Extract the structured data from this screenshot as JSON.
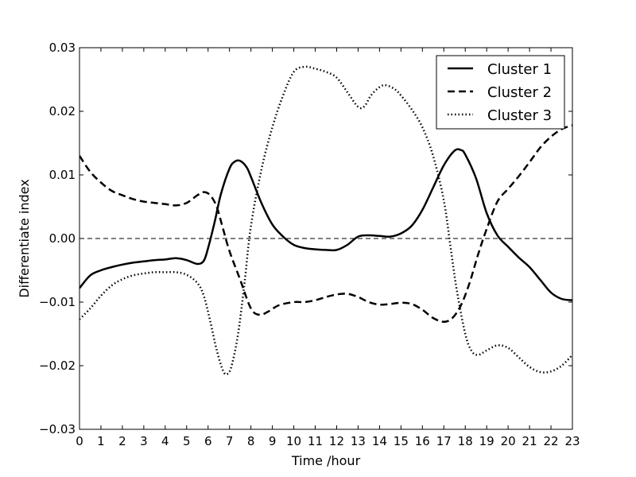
{
  "chart_data": {
    "type": "line",
    "title": "",
    "xlabel": "Time /hour",
    "ylabel": "Differentiate index",
    "xlim": [
      0,
      23
    ],
    "ylim": [
      -0.03,
      0.03
    ],
    "x_ticks": [
      0,
      1,
      2,
      3,
      4,
      5,
      6,
      7,
      8,
      9,
      10,
      11,
      12,
      13,
      14,
      15,
      16,
      17,
      18,
      19,
      20,
      21,
      22,
      23
    ],
    "x_tick_labels": [
      "0",
      "1",
      "2",
      "3",
      "4",
      "5",
      "6",
      "7",
      "8",
      "9",
      "10",
      "11",
      "12",
      "13",
      "14",
      "15",
      "16",
      "17",
      "18",
      "19",
      "20",
      "21",
      "22",
      "23"
    ],
    "y_ticks": [
      -0.03,
      -0.02,
      -0.01,
      0.0,
      0.01,
      0.02,
      0.03
    ],
    "y_tick_labels": [
      "−0.03",
      "−0.02",
      "−0.01",
      "0.00",
      "0.01",
      "0.02",
      "0.03"
    ],
    "grid": false,
    "legend_position": "top-right",
    "reference_line": {
      "y": 0.0,
      "style": "dashed"
    },
    "series": [
      {
        "name": "Cluster 1",
        "style": "solid",
        "color": "#000000",
        "points": [
          [
            0,
            -0.0078
          ],
          [
            0.5,
            -0.0058
          ],
          [
            1,
            -0.005
          ],
          [
            1.5,
            -0.0045
          ],
          [
            2,
            -0.0041
          ],
          [
            2.5,
            -0.0038
          ],
          [
            3,
            -0.0036
          ],
          [
            3.5,
            -0.0034
          ],
          [
            4,
            -0.0033
          ],
          [
            4.5,
            -0.0031
          ],
          [
            5,
            -0.0034
          ],
          [
            5.5,
            -0.004
          ],
          [
            5.8,
            -0.0035
          ],
          [
            6,
            -0.0015
          ],
          [
            6.3,
            0.0025
          ],
          [
            6.6,
            0.007
          ],
          [
            7,
            0.011
          ],
          [
            7.25,
            0.0121
          ],
          [
            7.5,
            0.0122
          ],
          [
            7.8,
            0.0112
          ],
          [
            8,
            0.0097
          ],
          [
            8.5,
            0.0055
          ],
          [
            9,
            0.0022
          ],
          [
            9.5,
            0.0003
          ],
          [
            10,
            -0.001
          ],
          [
            10.5,
            -0.0015
          ],
          [
            11,
            -0.0017
          ],
          [
            11.5,
            -0.0018
          ],
          [
            12,
            -0.0018
          ],
          [
            12.5,
            -0.001
          ],
          [
            13,
            0.0003
          ],
          [
            13.5,
            0.0005
          ],
          [
            14,
            0.0004
          ],
          [
            14.5,
            0.0003
          ],
          [
            15,
            0.0008
          ],
          [
            15.5,
            0.002
          ],
          [
            16,
            0.0045
          ],
          [
            16.5,
            0.008
          ],
          [
            17,
            0.0115
          ],
          [
            17.5,
            0.0138
          ],
          [
            17.8,
            0.0139
          ],
          [
            18,
            0.0132
          ],
          [
            18.5,
            0.0095
          ],
          [
            19,
            0.004
          ],
          [
            19.5,
            0.0005
          ],
          [
            20,
            -0.0013
          ],
          [
            20.5,
            -0.003
          ],
          [
            21,
            -0.0045
          ],
          [
            21.5,
            -0.0065
          ],
          [
            22,
            -0.0085
          ],
          [
            22.5,
            -0.0095
          ],
          [
            23,
            -0.0097
          ]
        ]
      },
      {
        "name": "Cluster 2",
        "style": "dashed",
        "color": "#000000",
        "points": [
          [
            0,
            0.013
          ],
          [
            0.5,
            0.0105
          ],
          [
            1,
            0.0088
          ],
          [
            1.5,
            0.0075
          ],
          [
            2,
            0.0068
          ],
          [
            2.5,
            0.0062
          ],
          [
            3,
            0.0058
          ],
          [
            3.5,
            0.0056
          ],
          [
            4,
            0.0054
          ],
          [
            4.5,
            0.0052
          ],
          [
            5,
            0.0056
          ],
          [
            5.5,
            0.0068
          ],
          [
            5.8,
            0.0073
          ],
          [
            6.1,
            0.0068
          ],
          [
            6.4,
            0.005
          ],
          [
            6.7,
            0.0015
          ],
          [
            7,
            -0.002
          ],
          [
            7.5,
            -0.0065
          ],
          [
            8,
            -0.011
          ],
          [
            8.4,
            -0.012
          ],
          [
            8.8,
            -0.0115
          ],
          [
            9.3,
            -0.0105
          ],
          [
            10,
            -0.01
          ],
          [
            10.5,
            -0.01
          ],
          [
            11,
            -0.0097
          ],
          [
            11.5,
            -0.0092
          ],
          [
            12,
            -0.0088
          ],
          [
            12.5,
            -0.0087
          ],
          [
            13,
            -0.0092
          ],
          [
            13.5,
            -0.01
          ],
          [
            14,
            -0.0104
          ],
          [
            14.5,
            -0.0103
          ],
          [
            15,
            -0.0101
          ],
          [
            15.5,
            -0.0103
          ],
          [
            16,
            -0.0112
          ],
          [
            16.5,
            -0.0125
          ],
          [
            17,
            -0.0131
          ],
          [
            17.4,
            -0.0125
          ],
          [
            17.8,
            -0.0105
          ],
          [
            18.2,
            -0.007
          ],
          [
            18.6,
            -0.0025
          ],
          [
            19,
            0.0015
          ],
          [
            19.5,
            0.0058
          ],
          [
            20,
            0.0078
          ],
          [
            20.5,
            0.0098
          ],
          [
            21,
            0.012
          ],
          [
            21.5,
            0.0143
          ],
          [
            22,
            0.016
          ],
          [
            22.5,
            0.0172
          ],
          [
            23,
            0.0178
          ]
        ]
      },
      {
        "name": "Cluster 3",
        "style": "dotted",
        "color": "#000000",
        "points": [
          [
            0,
            -0.0127
          ],
          [
            0.5,
            -0.011
          ],
          [
            1,
            -0.009
          ],
          [
            1.5,
            -0.0074
          ],
          [
            2,
            -0.0064
          ],
          [
            2.5,
            -0.0058
          ],
          [
            3,
            -0.0055
          ],
          [
            3.5,
            -0.0053
          ],
          [
            4,
            -0.0053
          ],
          [
            4.5,
            -0.0053
          ],
          [
            5,
            -0.0057
          ],
          [
            5.5,
            -0.007
          ],
          [
            5.8,
            -0.009
          ],
          [
            6.1,
            -0.013
          ],
          [
            6.4,
            -0.0175
          ],
          [
            6.7,
            -0.0208
          ],
          [
            6.9,
            -0.0213
          ],
          [
            7.1,
            -0.02
          ],
          [
            7.4,
            -0.015
          ],
          [
            7.7,
            -0.007
          ],
          [
            8,
            0.002
          ],
          [
            8.5,
            0.011
          ],
          [
            9,
            0.0175
          ],
          [
            9.5,
            0.0225
          ],
          [
            10,
            0.0262
          ],
          [
            10.5,
            0.027
          ],
          [
            11,
            0.0267
          ],
          [
            11.5,
            0.0262
          ],
          [
            12,
            0.0253
          ],
          [
            12.5,
            0.023
          ],
          [
            13,
            0.0207
          ],
          [
            13.3,
            0.0208
          ],
          [
            13.6,
            0.0225
          ],
          [
            14,
            0.0238
          ],
          [
            14.3,
            0.0241
          ],
          [
            14.7,
            0.0235
          ],
          [
            15,
            0.0225
          ],
          [
            15.5,
            0.0203
          ],
          [
            16,
            0.0175
          ],
          [
            16.5,
            0.013
          ],
          [
            17,
            0.006
          ],
          [
            17.3,
            -0.001
          ],
          [
            17.6,
            -0.008
          ],
          [
            18,
            -0.015
          ],
          [
            18.3,
            -0.0177
          ],
          [
            18.6,
            -0.0183
          ],
          [
            19,
            -0.0176
          ],
          [
            19.5,
            -0.0168
          ],
          [
            20,
            -0.0172
          ],
          [
            20.5,
            -0.0187
          ],
          [
            21,
            -0.0202
          ],
          [
            21.5,
            -0.021
          ],
          [
            22,
            -0.0209
          ],
          [
            22.5,
            -0.02
          ],
          [
            23,
            -0.0183
          ]
        ]
      }
    ]
  }
}
